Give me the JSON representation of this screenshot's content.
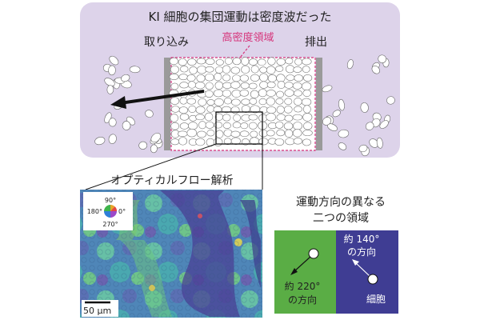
{
  "title": "KI 細胞の集団運動は密度波だった",
  "labels": {
    "intake": "取り込み",
    "dense_region": "高密度領域",
    "excretion": "排出",
    "optical_flow": "オプティカルフロー解析",
    "regions_title_1": "運動方向の異なる",
    "regions_title_2": "二つの領域",
    "cell": "細胞"
  },
  "color_wheel": {
    "top": "90°",
    "left": "180°",
    "right": "0°",
    "bottom": "270°"
  },
  "scale_bar": "50 μm",
  "region_left": {
    "line1": "約 220°",
    "line2": "の方向",
    "color": "#5aad45"
  },
  "region_right": {
    "line1": "約 140°",
    "line2": "の方向",
    "color": "#3f3d93"
  },
  "colors": {
    "panel_bg": "#ddd3ea",
    "dense_label": "#d6337a",
    "wall": "#9a9a9a"
  }
}
